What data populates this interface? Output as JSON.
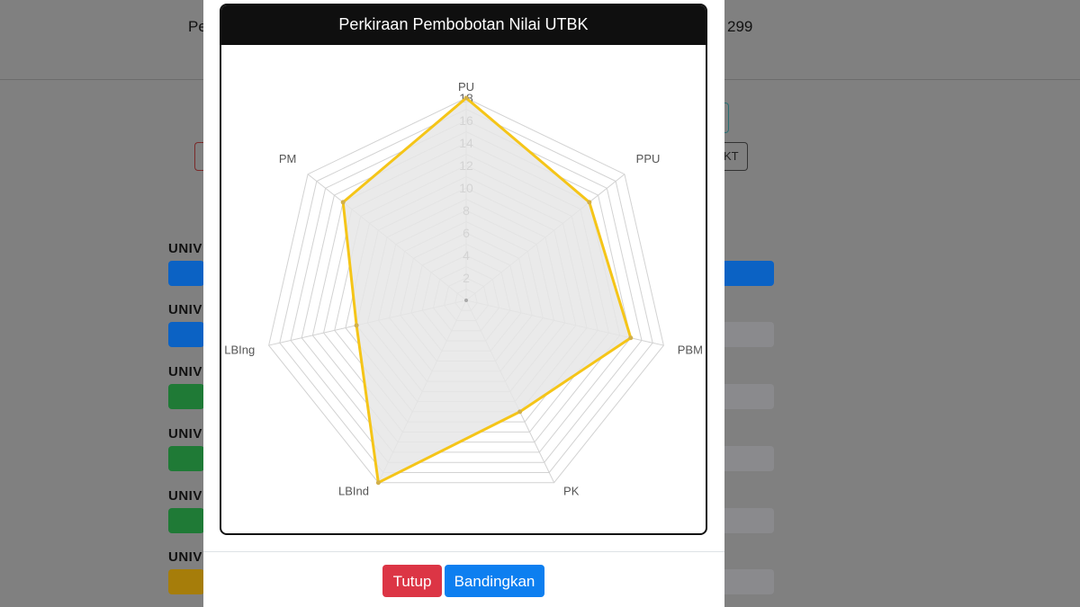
{
  "background": {
    "header_left": "Pe",
    "header_right": "299",
    "outline_button_label": "KT",
    "university_label": "UNIV",
    "bar_colors": [
      "#0b62c4",
      "#0b62c4",
      "#1f7a36",
      "#1f7a36",
      "#1f7a36",
      "#a67d0a"
    ]
  },
  "modal": {
    "buttons": {
      "close_label": "Tutup",
      "compare_label": "Bandingkan"
    }
  },
  "chart_data": {
    "type": "radar",
    "title": "Perkiraan Pembobotan Nilai UTBK",
    "axes": [
      "PU",
      "PPU",
      "PBM",
      "PK",
      "LBInd",
      "LBIng",
      "PM"
    ],
    "series": [
      {
        "values": [
          18,
          14,
          15,
          11,
          18,
          10,
          14
        ]
      }
    ],
    "r_range": [
      0,
      18
    ],
    "r_ticks": [
      2,
      4,
      6,
      8,
      10,
      12,
      14,
      16,
      18
    ],
    "gridlines": true,
    "colors": {
      "line": "#f5c518",
      "fill": "#e6e6e6",
      "grid": "#d2d2d2",
      "axis_label": "#555555"
    }
  }
}
